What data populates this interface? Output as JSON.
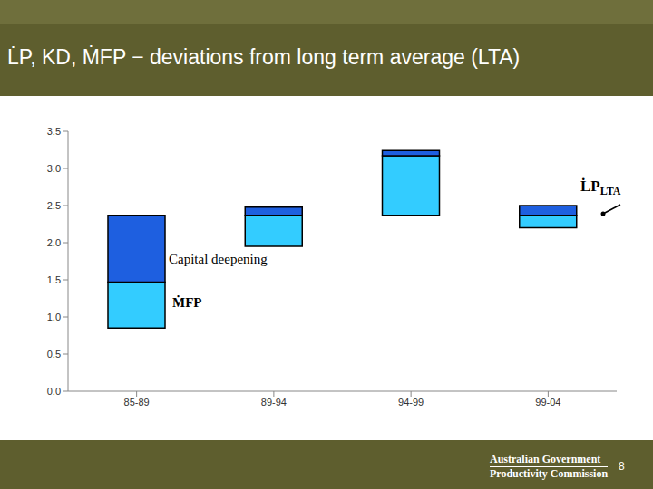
{
  "chart_data": {
    "type": "bar",
    "title": "L̇P, KD, ṀFP − deviations from long term average (LTA)",
    "categories": [
      "85-89",
      "89-94",
      "94-99",
      "99-04"
    ],
    "series": [
      {
        "name": "ṀFP",
        "color": "#33ccff",
        "values": [
          [
            0.85,
            1.47
          ],
          [
            1.95,
            2.37
          ],
          [
            2.37,
            3.17
          ],
          [
            2.2,
            2.37
          ]
        ]
      },
      {
        "name": "Capital deepening",
        "color": "#1e5fe0",
        "values": [
          [
            1.47,
            2.37
          ],
          [
            2.37,
            2.48
          ],
          [
            3.17,
            3.24
          ],
          [
            2.37,
            2.5
          ]
        ]
      }
    ],
    "annotations": [
      {
        "text": "L̇P",
        "subscript": "LTA"
      }
    ],
    "ylim": [
      0,
      3.5
    ],
    "yticks": [
      {
        "value": 0,
        "label": "0.0"
      },
      0.5,
      {
        "value": 1,
        "label": "1.0"
      },
      1.5,
      {
        "value": 2,
        "label": "2.0"
      },
      2.5,
      {
        "value": 3,
        "label": "3.0"
      },
      3.5
    ],
    "grid": false
  },
  "footer": {
    "lines": [
      "Australian Government",
      "Productivity Commission"
    ],
    "page": 8
  }
}
